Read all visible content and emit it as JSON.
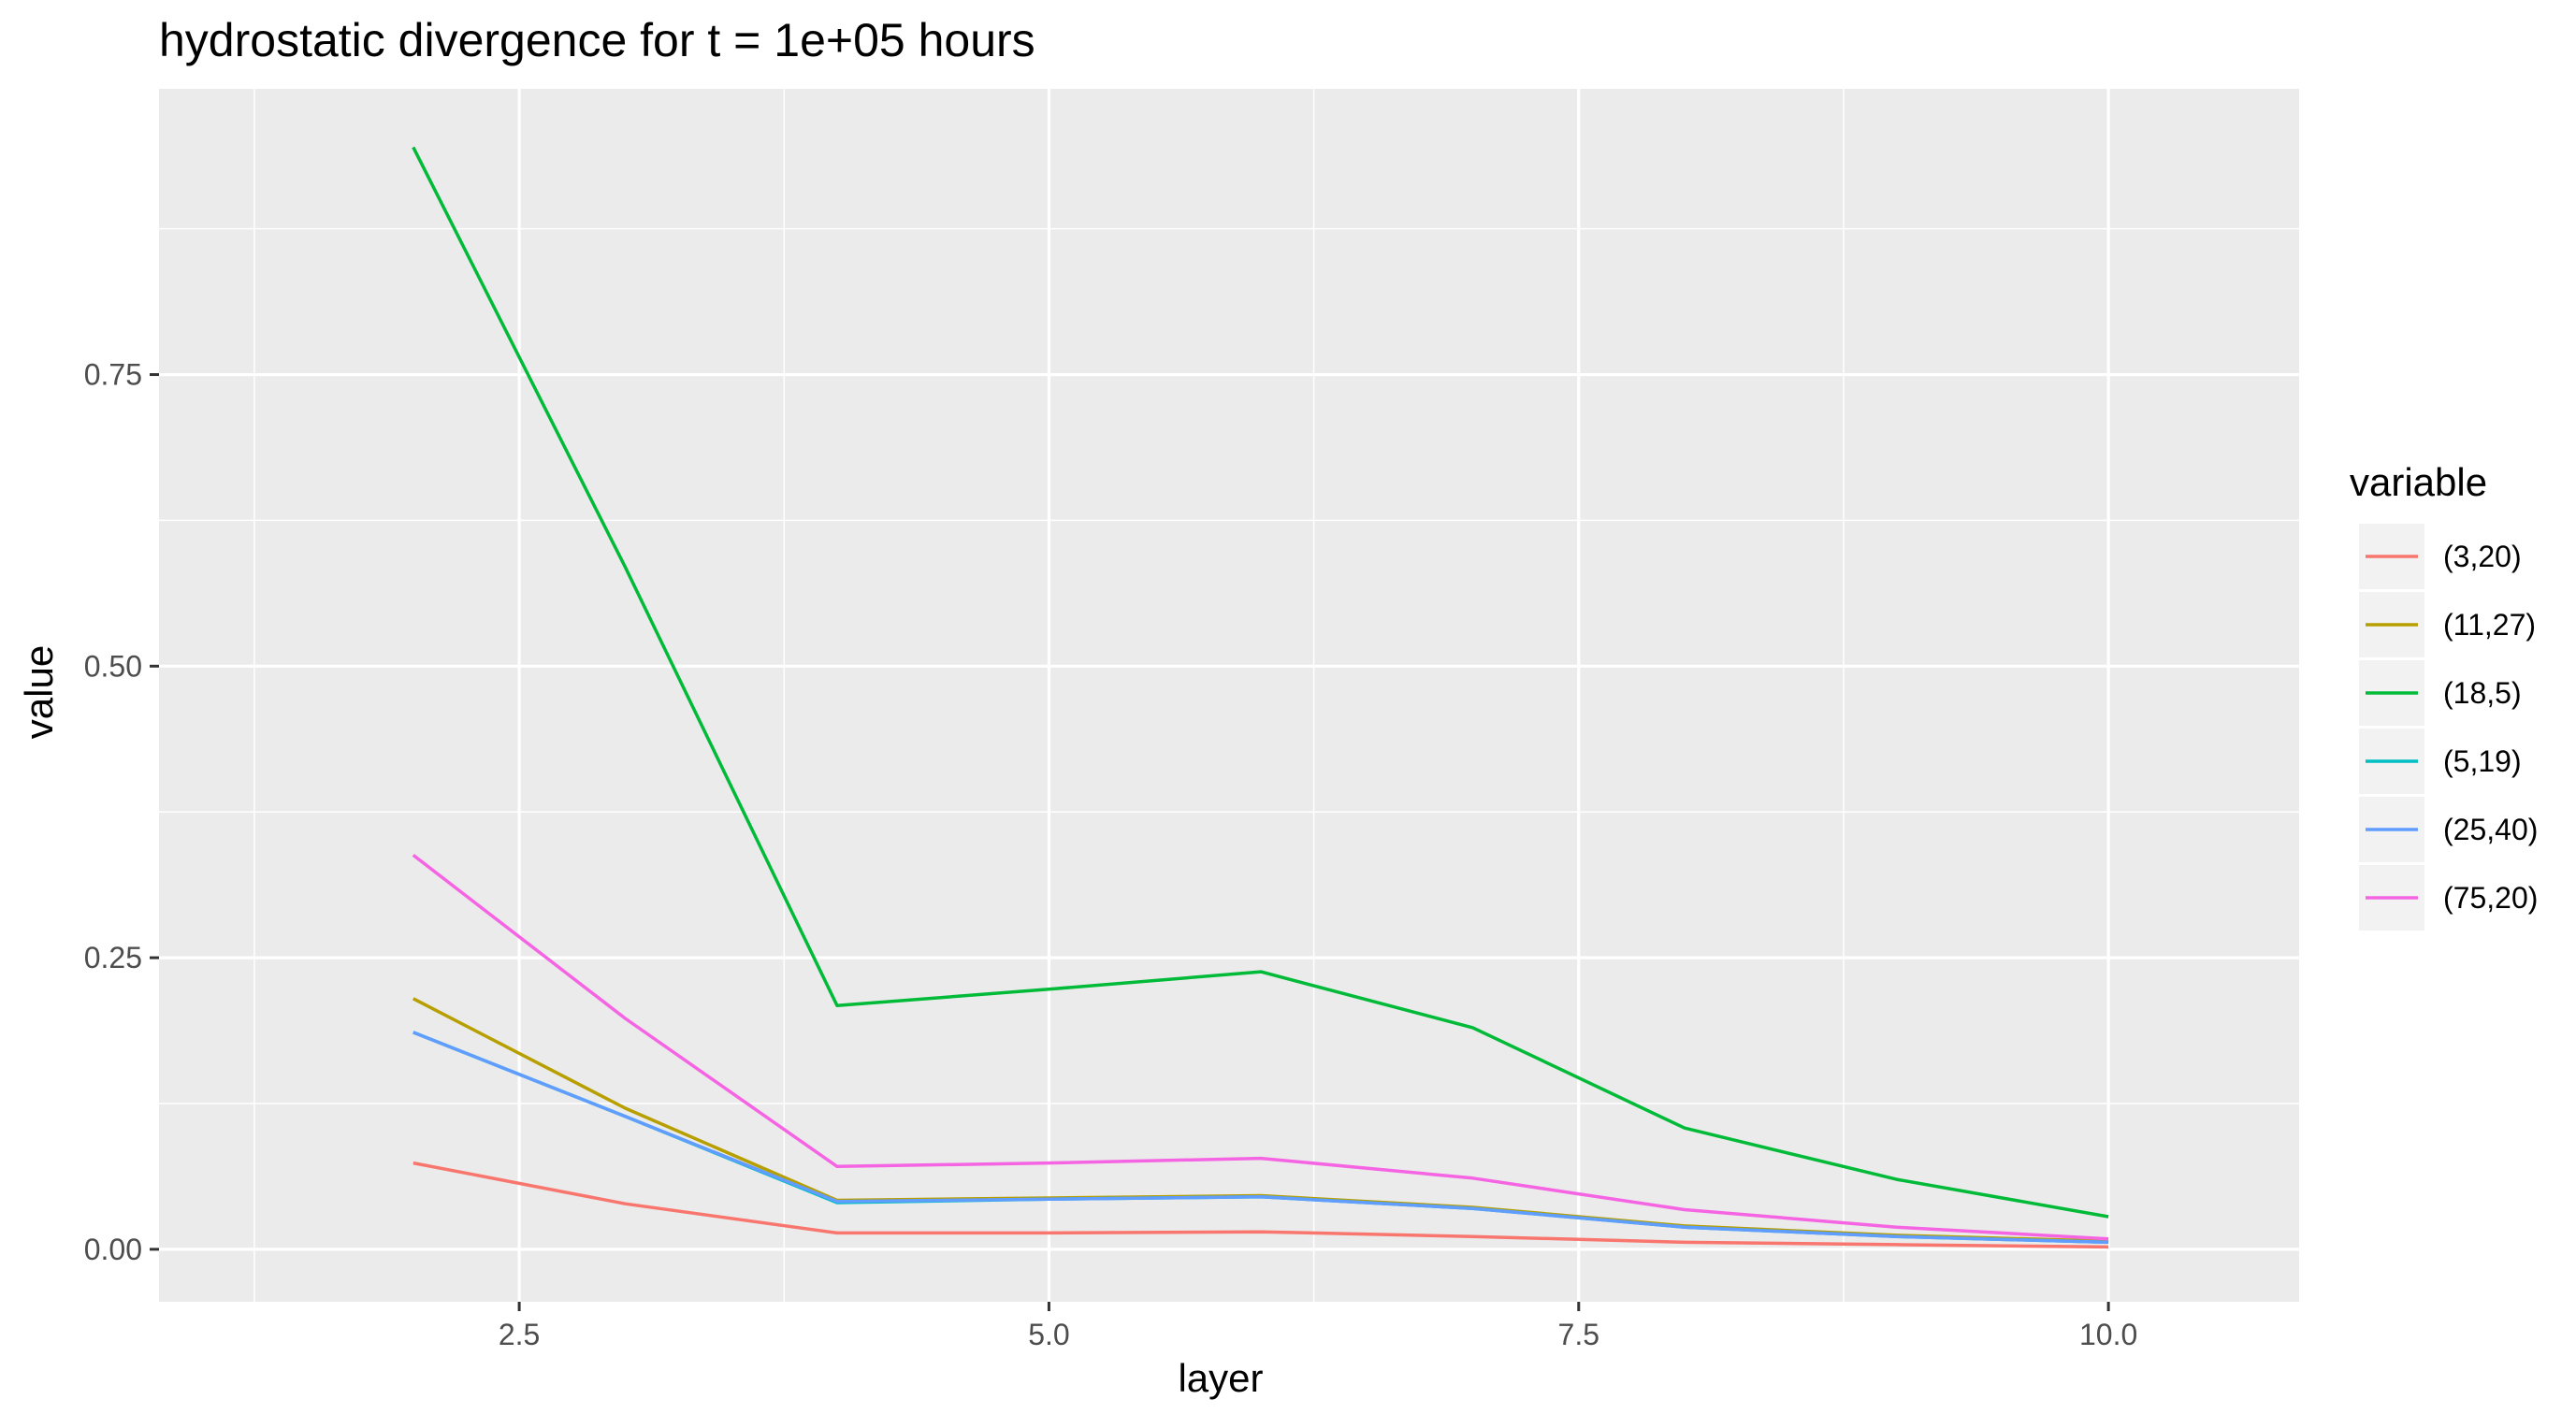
{
  "chart_data": {
    "type": "line",
    "title": "hydrostatic divergence for t = 1e+05 hours",
    "xlabel": "layer",
    "ylabel": "value",
    "xlim": [
      0.8,
      10.9
    ],
    "ylim": [
      -0.045,
      0.995
    ],
    "x_major_ticks": [
      2.5,
      5.0,
      7.5,
      10.0
    ],
    "x_tick_labels": [
      "2.5",
      "5.0",
      "7.5",
      "10.0"
    ],
    "x_minor_ticks": [
      1.25,
      3.75,
      6.25,
      8.75
    ],
    "y_major_ticks": [
      0.0,
      0.25,
      0.5,
      0.75
    ],
    "y_tick_labels": [
      "0.00",
      "0.25",
      "0.50",
      "0.75"
    ],
    "y_minor_ticks": [
      0.125,
      0.375,
      0.625,
      0.875
    ],
    "grid": true,
    "legend_title": "variable",
    "legend_position": "right",
    "x": [
      2,
      3,
      4,
      5,
      6,
      7,
      8,
      9,
      10
    ],
    "series": [
      {
        "name": "(3,20)",
        "color": "#F8766D",
        "values": [
          0.074,
          0.039,
          0.014,
          0.014,
          0.015,
          0.011,
          0.006,
          0.004,
          0.002
        ]
      },
      {
        "name": "(11,27)",
        "color": "#B79F00",
        "values": [
          0.215,
          0.121,
          0.042,
          0.044,
          0.046,
          0.036,
          0.02,
          0.012,
          0.007
        ]
      },
      {
        "name": "(18,5)",
        "color": "#00BA38",
        "values": [
          0.945,
          0.585,
          0.209,
          0.223,
          0.238,
          0.19,
          0.104,
          0.06,
          0.028
        ]
      },
      {
        "name": "(5,19)",
        "color": "#00BFC4",
        "values": [
          0.186,
          0.114,
          0.04,
          0.043,
          0.045,
          0.035,
          0.019,
          0.011,
          0.006
        ]
      },
      {
        "name": "(25,40)",
        "color": "#619CFF",
        "values": [
          0.186,
          0.114,
          0.041,
          0.043,
          0.045,
          0.035,
          0.019,
          0.011,
          0.006
        ]
      },
      {
        "name": "(75,20)",
        "color": "#F564E3",
        "values": [
          0.338,
          0.198,
          0.071,
          0.074,
          0.078,
          0.061,
          0.034,
          0.019,
          0.009
        ]
      }
    ]
  }
}
